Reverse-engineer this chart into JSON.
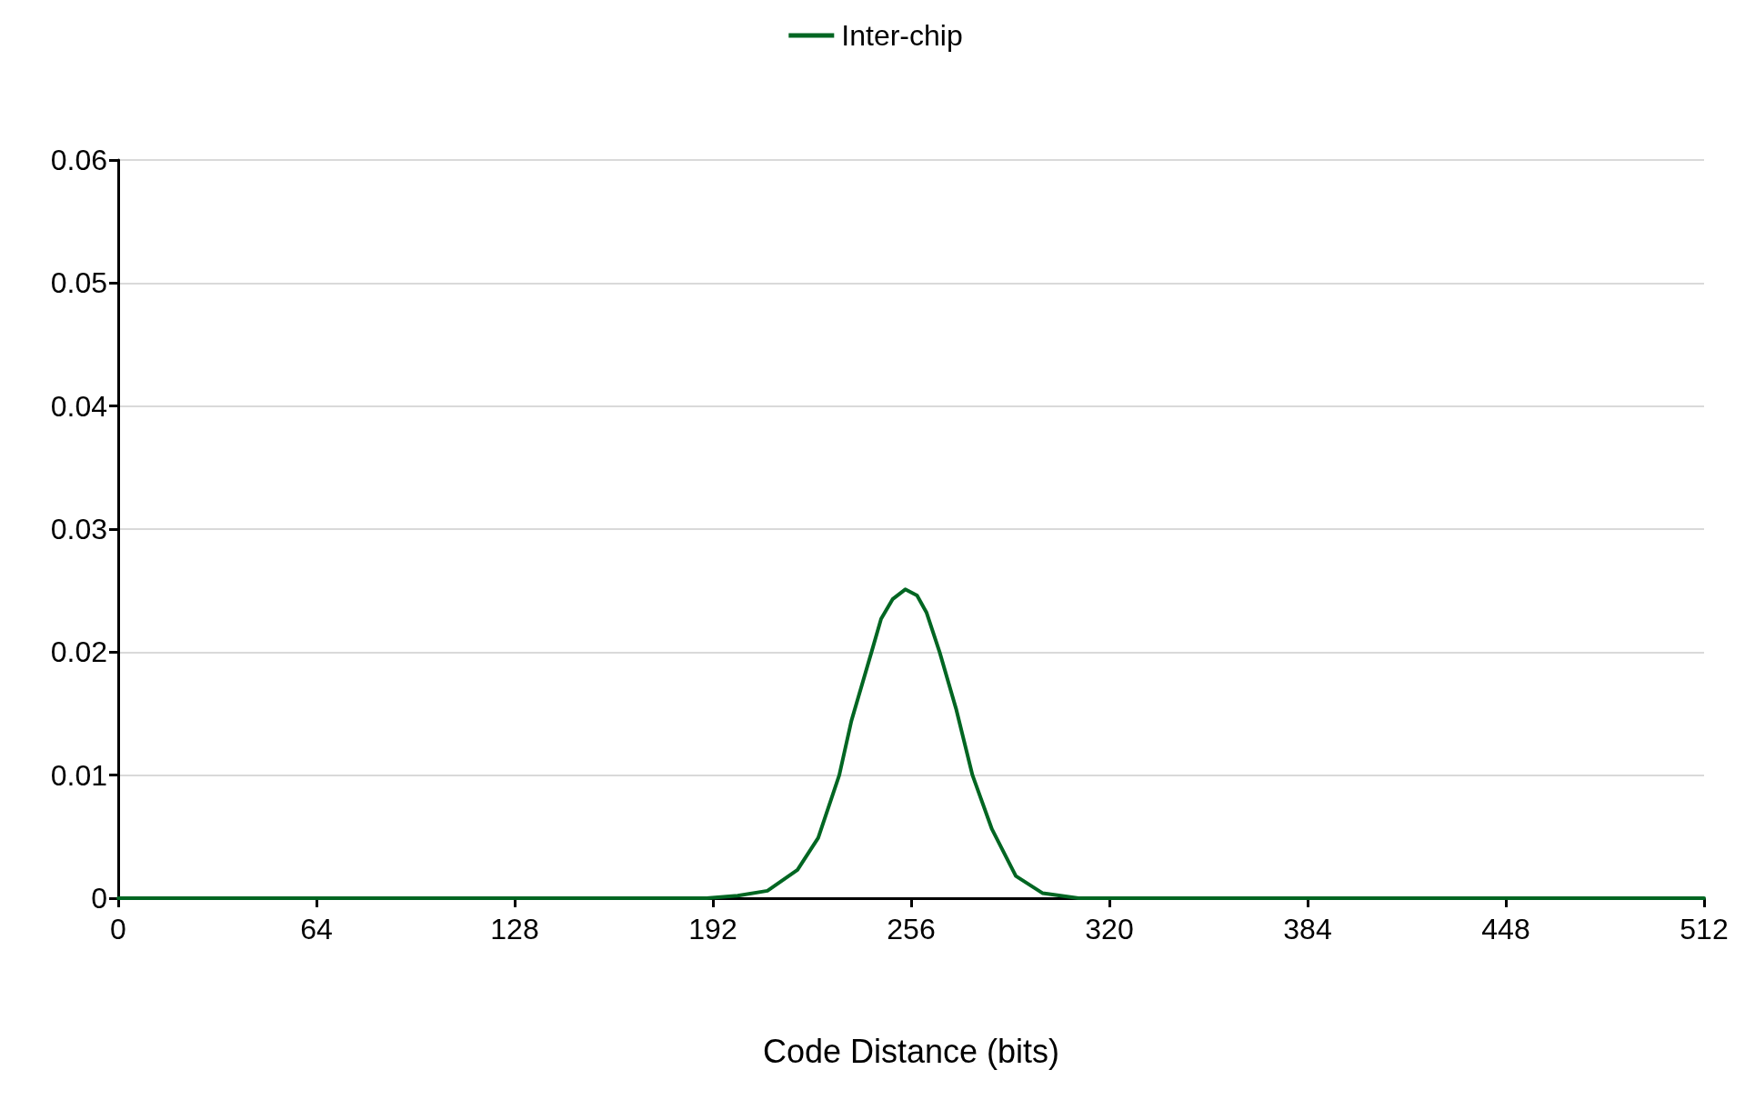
{
  "chart_data": {
    "type": "line",
    "xlabel": "Code Distance (bits)",
    "xlim": [
      0,
      512
    ],
    "xticks": [
      0,
      64,
      128,
      192,
      256,
      320,
      384,
      448,
      512
    ],
    "ylim": [
      0,
      0.06
    ],
    "yticks": [
      0,
      0.01,
      0.02,
      0.03,
      0.04,
      0.05,
      0.06
    ],
    "grid": "y",
    "legend": "top",
    "marker": "none",
    "line_style": "solid",
    "series": [
      {
        "name": "Inter-chip",
        "color": "#006622",
        "x": [
          0,
          100,
          190,
          200,
          209.6,
          219.3,
          226,
          232.8,
          236.7,
          243.2,
          246.3,
          250,
          254.1,
          257.9,
          261,
          265.2,
          270.5,
          275.8,
          282.1,
          289.8,
          298.5,
          310,
          400,
          512
        ],
        "values": [
          0,
          0,
          0,
          0.0002,
          0.0006,
          0.0023,
          0.0049,
          0.01,
          0.0144,
          0.02,
          0.0227,
          0.0243,
          0.0251,
          0.0246,
          0.0232,
          0.02,
          0.0154,
          0.01,
          0.0056,
          0.0018,
          0.0004,
          0,
          0,
          0
        ]
      }
    ]
  }
}
